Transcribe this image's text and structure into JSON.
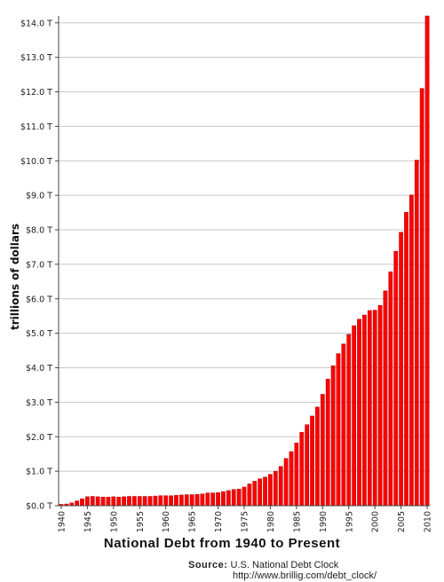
{
  "chart_data": {
    "type": "bar",
    "title": "National Debt from 1940 to Present",
    "ylabel": "trillions of dollars",
    "xlabel": "",
    "ylim": [
      0,
      14.2
    ],
    "y_ticks": [
      0,
      1,
      2,
      3,
      4,
      5,
      6,
      7,
      8,
      9,
      10,
      11,
      12,
      13,
      14
    ],
    "y_tick_labels": [
      "$0.0 T",
      "$1.0 T",
      "$2.0 T",
      "$3.0 T",
      "$4.0 T",
      "$5.0 T",
      "$6.0 T",
      "$7.0 T",
      "$8.0 T",
      "$9.0 T",
      "$10.0 T",
      "$11.0 T",
      "$12.0 T",
      "$13.0 T",
      "$14.0 T"
    ],
    "x_tick_labels": [
      "1940",
      "1945",
      "1950",
      "1955",
      "1960",
      "1965",
      "1970",
      "1975",
      "1980",
      "1985",
      "1990",
      "1995",
      "2000",
      "2005",
      "2010"
    ],
    "categories": [
      1940,
      1941,
      1942,
      1943,
      1944,
      1945,
      1946,
      1947,
      1948,
      1949,
      1950,
      1951,
      1952,
      1953,
      1954,
      1955,
      1956,
      1957,
      1958,
      1959,
      1960,
      1961,
      1962,
      1963,
      1964,
      1965,
      1966,
      1967,
      1968,
      1969,
      1970,
      1971,
      1972,
      1973,
      1974,
      1975,
      1976,
      1977,
      1978,
      1979,
      1980,
      1981,
      1982,
      1983,
      1984,
      1985,
      1986,
      1987,
      1988,
      1989,
      1990,
      1991,
      1992,
      1993,
      1994,
      1995,
      1996,
      1997,
      1998,
      1999,
      2000,
      2001,
      2002,
      2003,
      2004,
      2005,
      2006,
      2007,
      2008,
      2009,
      2010
    ],
    "values": [
      0.04,
      0.05,
      0.08,
      0.14,
      0.2,
      0.26,
      0.27,
      0.26,
      0.25,
      0.25,
      0.26,
      0.25,
      0.26,
      0.27,
      0.27,
      0.27,
      0.27,
      0.27,
      0.28,
      0.29,
      0.29,
      0.29,
      0.3,
      0.31,
      0.32,
      0.32,
      0.33,
      0.34,
      0.37,
      0.37,
      0.38,
      0.41,
      0.44,
      0.47,
      0.48,
      0.54,
      0.63,
      0.71,
      0.78,
      0.83,
      0.91,
      1.0,
      1.14,
      1.37,
      1.57,
      1.82,
      2.13,
      2.35,
      2.6,
      2.86,
      3.23,
      3.67,
      4.06,
      4.41,
      4.69,
      4.97,
      5.22,
      5.41,
      5.53,
      5.66,
      5.67,
      5.81,
      6.23,
      6.78,
      7.38,
      7.93,
      8.51,
      9.01,
      10.02,
      12.1,
      14.2
    ],
    "bar_color": "#ff0000",
    "bar_edge_color": "#b00000",
    "grid": true,
    "legend": "none"
  },
  "source": {
    "label": "Source:",
    "text": "U.S. National Debt Clock",
    "url": "http://www.brillig.com/debt_clock/"
  }
}
